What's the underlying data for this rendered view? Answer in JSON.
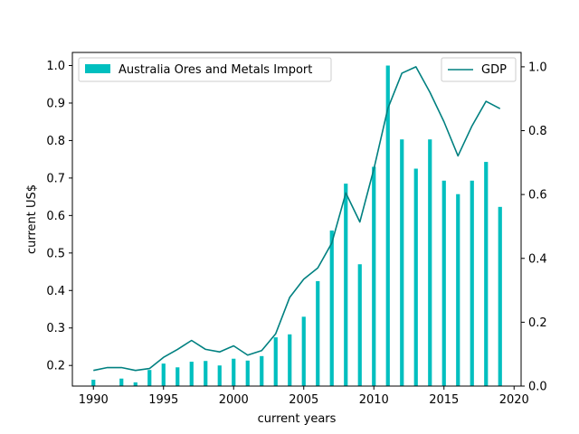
{
  "chart_data": {
    "type": "bar+line",
    "x": [
      1990,
      1991,
      1992,
      1993,
      1994,
      1995,
      1996,
      1997,
      1998,
      1999,
      2000,
      2001,
      2002,
      2003,
      2004,
      2005,
      2006,
      2007,
      2008,
      2009,
      2010,
      2011,
      2012,
      2013,
      2014,
      2015,
      2016,
      2017,
      2018,
      2019
    ],
    "xlabel": "current years",
    "ylabel": "current US$",
    "x_ticks": [
      1990,
      1995,
      2000,
      2005,
      2010,
      2015,
      2020
    ],
    "xlim": [
      1988.5,
      2020.5
    ],
    "left_axis": {
      "ylim": [
        0.145,
        1.035
      ],
      "ticks": [
        0.2,
        0.3,
        0.4,
        0.5,
        0.6,
        0.7,
        0.8,
        0.9,
        1.0
      ],
      "tick_labels": [
        "0.2",
        "0.3",
        "0.4",
        "0.5",
        "0.6",
        "0.7",
        "0.8",
        "0.9",
        "1.0"
      ]
    },
    "right_axis": {
      "ylim": [
        0.0,
        1.045
      ],
      "ticks": [
        0.0,
        0.2,
        0.4,
        0.6,
        0.8,
        1.0
      ],
      "tick_labels": [
        "0.0",
        "0.2",
        "0.4",
        "0.6",
        "0.8",
        "1.0"
      ]
    },
    "bar_series": {
      "name": "Australia Ores and Metals Import",
      "color": "#00bfbf",
      "axis": "left",
      "values": [
        0.162,
        null,
        0.165,
        0.155,
        0.188,
        0.205,
        0.195,
        0.21,
        0.212,
        0.2,
        0.218,
        0.213,
        0.225,
        0.275,
        0.283,
        0.33,
        0.425,
        0.56,
        0.685,
        0.47,
        0.73,
        1.0,
        0.803,
        0.725,
        0.803,
        0.693,
        0.657,
        0.693,
        0.743,
        0.623
      ]
    },
    "line_series": {
      "name": "GDP",
      "color": "#008080",
      "axis": "right",
      "values": [
        0.049,
        0.058,
        0.058,
        0.049,
        0.055,
        0.09,
        0.115,
        0.143,
        0.115,
        0.107,
        0.126,
        0.097,
        0.111,
        0.164,
        0.278,
        0.335,
        0.37,
        0.448,
        0.605,
        0.514,
        0.68,
        0.87,
        0.98,
        1.0,
        0.92,
        0.828,
        0.721,
        0.815,
        0.892,
        0.869
      ]
    },
    "legends": {
      "bars_position": "upper-left",
      "line_position": "upper-right"
    },
    "grid": false
  }
}
